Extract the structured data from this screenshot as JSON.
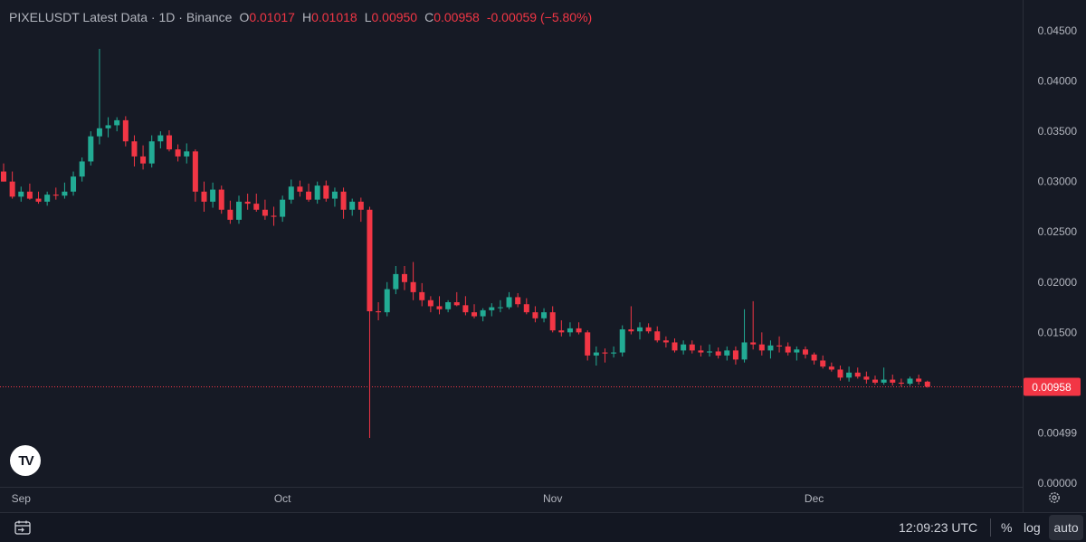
{
  "legend": {
    "symbol": "PIXELUSDT Latest Data",
    "interval": "1D",
    "exchange": "Binance",
    "open_label": "O",
    "open": "0.01017",
    "high_label": "H",
    "high": "0.01018",
    "low_label": "L",
    "low": "0.00950",
    "close_label": "C",
    "close": "0.00958",
    "change": "-0.00059 (−5.80%)"
  },
  "logo_text": "TV",
  "bottom": {
    "time": "12:09:23 UTC",
    "percent_label": "%",
    "log_label": "log",
    "auto_label": "auto"
  },
  "colors": {
    "up": "#22ab94",
    "down": "#f23645",
    "background": "#161a25",
    "axis_text": "#b2b5be"
  },
  "icons": [
    "calendar-range-icon",
    "settings-gear-icon"
  ],
  "chart_data": {
    "type": "candlestick",
    "x_tick_labels": [
      "Sep",
      "Oct",
      "Nov",
      "Dec"
    ],
    "y_tick_labels": [
      "0.04500",
      "0.04000",
      "0.03500",
      "0.03000",
      "0.02500",
      "0.02000",
      "0.01500",
      "0.00499",
      "0.00000"
    ],
    "y_ticks": [
      0.045,
      0.04,
      0.035,
      0.03,
      0.025,
      0.02,
      0.015,
      0.00499,
      0.0
    ],
    "ylim": [
      0.0,
      0.047
    ],
    "last_price": 0.00958,
    "last_price_label": "0.00958",
    "candles": [
      [
        0.031,
        0.0318,
        0.03,
        0.03
      ],
      [
        0.03,
        0.031,
        0.0283,
        0.0285
      ],
      [
        0.0285,
        0.0295,
        0.028,
        0.029
      ],
      [
        0.029,
        0.0298,
        0.0282,
        0.0283
      ],
      [
        0.0283,
        0.029,
        0.0278,
        0.028
      ],
      [
        0.028,
        0.029,
        0.0276,
        0.0287
      ],
      [
        0.0287,
        0.0294,
        0.0282,
        0.0286
      ],
      [
        0.0286,
        0.0299,
        0.0283,
        0.029
      ],
      [
        0.029,
        0.031,
        0.0286,
        0.0305
      ],
      [
        0.0305,
        0.0324,
        0.03,
        0.032
      ],
      [
        0.032,
        0.035,
        0.0316,
        0.0345
      ],
      [
        0.0345,
        0.0432,
        0.0337,
        0.0353
      ],
      [
        0.0353,
        0.0364,
        0.0344,
        0.0356
      ],
      [
        0.0356,
        0.0364,
        0.035,
        0.0361
      ],
      [
        0.0361,
        0.0365,
        0.0335,
        0.034
      ],
      [
        0.034,
        0.0346,
        0.0315,
        0.0325
      ],
      [
        0.0325,
        0.0336,
        0.0312,
        0.0318
      ],
      [
        0.0318,
        0.0346,
        0.0314,
        0.034
      ],
      [
        0.034,
        0.035,
        0.0333,
        0.0346
      ],
      [
        0.0346,
        0.0351,
        0.033,
        0.0332
      ],
      [
        0.0332,
        0.0337,
        0.032,
        0.0325
      ],
      [
        0.0325,
        0.0338,
        0.0318,
        0.033
      ],
      [
        0.033,
        0.0332,
        0.028,
        0.029
      ],
      [
        0.029,
        0.03,
        0.027,
        0.028
      ],
      [
        0.028,
        0.0299,
        0.0274,
        0.0292
      ],
      [
        0.0292,
        0.0296,
        0.0268,
        0.0272
      ],
      [
        0.0272,
        0.0281,
        0.0258,
        0.0262
      ],
      [
        0.0262,
        0.0286,
        0.0258,
        0.028
      ],
      [
        0.028,
        0.0288,
        0.0272,
        0.0278
      ],
      [
        0.0278,
        0.0288,
        0.027,
        0.0272
      ],
      [
        0.0272,
        0.0282,
        0.0262,
        0.0266
      ],
      [
        0.0266,
        0.0275,
        0.0256,
        0.0265
      ],
      [
        0.0265,
        0.0286,
        0.026,
        0.0282
      ],
      [
        0.0282,
        0.0302,
        0.0278,
        0.0295
      ],
      [
        0.0295,
        0.0301,
        0.0285,
        0.029
      ],
      [
        0.029,
        0.0298,
        0.028,
        0.0282
      ],
      [
        0.0282,
        0.03,
        0.0278,
        0.0296
      ],
      [
        0.0296,
        0.0301,
        0.028,
        0.0283
      ],
      [
        0.0283,
        0.0294,
        0.0275,
        0.029
      ],
      [
        0.029,
        0.0294,
        0.0263,
        0.0272
      ],
      [
        0.0272,
        0.0283,
        0.0266,
        0.028
      ],
      [
        0.028,
        0.0284,
        0.026,
        0.0272
      ],
      [
        0.0272,
        0.0275,
        0.0045,
        0.0171
      ],
      [
        0.0171,
        0.018,
        0.0162,
        0.017
      ],
      [
        0.017,
        0.02,
        0.0166,
        0.0193
      ],
      [
        0.0193,
        0.0216,
        0.0188,
        0.0208
      ],
      [
        0.0208,
        0.0216,
        0.0192,
        0.02
      ],
      [
        0.02,
        0.022,
        0.0182,
        0.019
      ],
      [
        0.019,
        0.0199,
        0.0176,
        0.0182
      ],
      [
        0.0182,
        0.0186,
        0.017,
        0.0176
      ],
      [
        0.0176,
        0.0186,
        0.0168,
        0.0173
      ],
      [
        0.0173,
        0.0182,
        0.017,
        0.018
      ],
      [
        0.018,
        0.019,
        0.0176,
        0.0177
      ],
      [
        0.0177,
        0.0186,
        0.0167,
        0.017
      ],
      [
        0.017,
        0.0178,
        0.0164,
        0.0166
      ],
      [
        0.0166,
        0.0174,
        0.0161,
        0.0172
      ],
      [
        0.0172,
        0.0179,
        0.0166,
        0.0175
      ],
      [
        0.0175,
        0.0182,
        0.017,
        0.0175
      ],
      [
        0.0175,
        0.019,
        0.0173,
        0.0185
      ],
      [
        0.0185,
        0.0189,
        0.0175,
        0.0178
      ],
      [
        0.0178,
        0.0184,
        0.0168,
        0.017
      ],
      [
        0.017,
        0.0176,
        0.016,
        0.0164
      ],
      [
        0.0164,
        0.0174,
        0.016,
        0.017
      ],
      [
        0.017,
        0.0176,
        0.015,
        0.0152
      ],
      [
        0.0152,
        0.0162,
        0.0146,
        0.015
      ],
      [
        0.015,
        0.016,
        0.0146,
        0.0154
      ],
      [
        0.0154,
        0.016,
        0.0148,
        0.015
      ],
      [
        0.015,
        0.0152,
        0.0122,
        0.0127
      ],
      [
        0.0127,
        0.0136,
        0.0117,
        0.013
      ],
      [
        0.013,
        0.0134,
        0.012,
        0.0129
      ],
      [
        0.0129,
        0.0136,
        0.0125,
        0.013
      ],
      [
        0.013,
        0.0157,
        0.0126,
        0.0153
      ],
      [
        0.0153,
        0.0176,
        0.0148,
        0.0151
      ],
      [
        0.0151,
        0.016,
        0.0143,
        0.0155
      ],
      [
        0.0155,
        0.0159,
        0.0149,
        0.0151
      ],
      [
        0.0151,
        0.0156,
        0.014,
        0.0142
      ],
      [
        0.0142,
        0.0146,
        0.0135,
        0.014
      ],
      [
        0.014,
        0.0144,
        0.013,
        0.0132
      ],
      [
        0.0132,
        0.0142,
        0.0128,
        0.0138
      ],
      [
        0.0138,
        0.0142,
        0.0129,
        0.0132
      ],
      [
        0.0132,
        0.0137,
        0.0126,
        0.013
      ],
      [
        0.013,
        0.0138,
        0.0126,
        0.0131
      ],
      [
        0.0131,
        0.0135,
        0.0124,
        0.0127
      ],
      [
        0.0127,
        0.0136,
        0.0122,
        0.0132
      ],
      [
        0.0132,
        0.0136,
        0.0118,
        0.0123
      ],
      [
        0.0123,
        0.0173,
        0.012,
        0.014
      ],
      [
        0.014,
        0.0181,
        0.0133,
        0.0138
      ],
      [
        0.0138,
        0.015,
        0.0127,
        0.0132
      ],
      [
        0.0132,
        0.0142,
        0.0124,
        0.0137
      ],
      [
        0.0137,
        0.0146,
        0.013,
        0.0136
      ],
      [
        0.0136,
        0.014,
        0.0127,
        0.013
      ],
      [
        0.013,
        0.0136,
        0.0122,
        0.0133
      ],
      [
        0.0133,
        0.0136,
        0.0124,
        0.0128
      ],
      [
        0.0128,
        0.013,
        0.0118,
        0.0122
      ],
      [
        0.0122,
        0.0127,
        0.0114,
        0.0116
      ],
      [
        0.0116,
        0.012,
        0.0111,
        0.0113
      ],
      [
        0.0113,
        0.0117,
        0.0102,
        0.0105
      ],
      [
        0.0105,
        0.0116,
        0.0101,
        0.011
      ],
      [
        0.011,
        0.0115,
        0.0104,
        0.0106
      ],
      [
        0.0106,
        0.0111,
        0.0099,
        0.0103
      ],
      [
        0.0103,
        0.0107,
        0.0098,
        0.01
      ],
      [
        0.01,
        0.0115,
        0.0098,
        0.0103
      ],
      [
        0.0103,
        0.0108,
        0.0097,
        0.01
      ],
      [
        0.01,
        0.0104,
        0.0096,
        0.0099
      ],
      [
        0.0099,
        0.0106,
        0.0097,
        0.0104
      ],
      [
        0.0104,
        0.0108,
        0.0098,
        0.0101
      ],
      [
        0.0101,
        0.0102,
        0.0095,
        0.0096
      ]
    ]
  }
}
